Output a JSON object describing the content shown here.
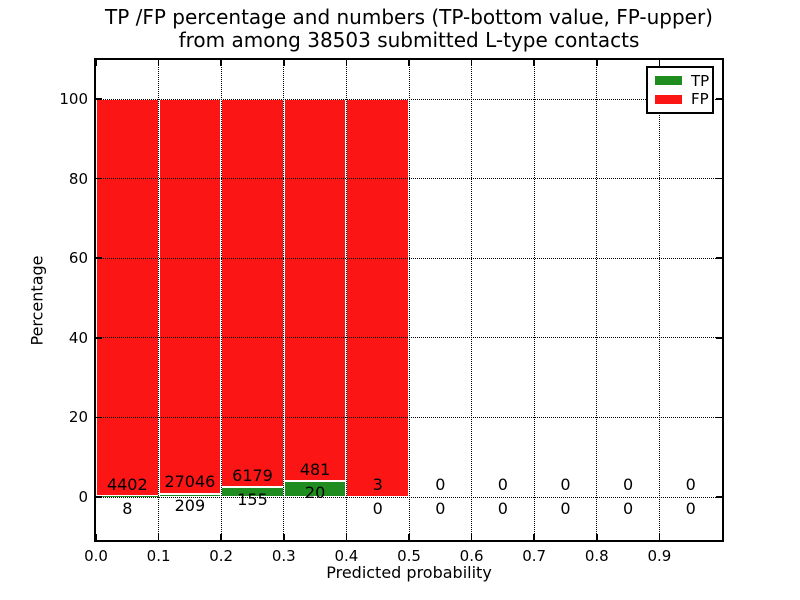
{
  "title": {
    "line1": "TP /FP percentage and numbers (TP-bottom value, FP-upper)",
    "line2": "from among 38503 submitted L-type contacts"
  },
  "chart_data": {
    "type": "bar",
    "stacked": true,
    "title": "TP /FP percentage and numbers (TP-bottom value, FP-upper)\nfrom among 38503 submitted L-type contacts",
    "xlabel": "Predicted probability",
    "ylabel": "Percentage",
    "xlim": [
      0.0,
      1.0
    ],
    "ylim": [
      -10.8,
      109.8
    ],
    "xtick_labels": [
      "0.0",
      "0.1",
      "0.2",
      "0.3",
      "0.4",
      "0.5",
      "0.6",
      "0.7",
      "0.8",
      "0.9"
    ],
    "xtick_values": [
      0.0,
      0.1,
      0.2,
      0.3,
      0.4,
      0.5,
      0.6,
      0.7,
      0.8,
      0.9
    ],
    "ytick_values": [
      0,
      20,
      40,
      60,
      80,
      100
    ],
    "grid": "dotted-black-above-bars",
    "total_contacts": 38503,
    "legend": {
      "position": "upper right",
      "entries": [
        {
          "label": "TP",
          "color": "#1f8c1f"
        },
        {
          "label": "FP",
          "color": "#fb1515"
        }
      ]
    },
    "series": [
      {
        "name": "TP",
        "color": "#1f8c1f",
        "values": [
          8,
          209,
          155,
          20,
          0,
          0,
          0,
          0,
          0,
          0
        ]
      },
      {
        "name": "FP",
        "color": "#fb1515",
        "values": [
          4402,
          27046,
          6179,
          481,
          3,
          0,
          0,
          0,
          0,
          0
        ]
      }
    ],
    "bins": [
      {
        "range": [
          0.0,
          0.1
        ],
        "tp": 8,
        "fp": 4402
      },
      {
        "range": [
          0.1,
          0.2
        ],
        "tp": 209,
        "fp": 27046
      },
      {
        "range": [
          0.2,
          0.3
        ],
        "tp": 155,
        "fp": 6179
      },
      {
        "range": [
          0.3,
          0.4
        ],
        "tp": 20,
        "fp": 481
      },
      {
        "range": [
          0.4,
          0.5
        ],
        "tp": 0,
        "fp": 3
      },
      {
        "range": [
          0.5,
          0.6
        ],
        "tp": 0,
        "fp": 0
      },
      {
        "range": [
          0.6,
          0.7
        ],
        "tp": 0,
        "fp": 0
      },
      {
        "range": [
          0.7,
          0.8
        ],
        "tp": 0,
        "fp": 0
      },
      {
        "range": [
          0.8,
          0.9
        ],
        "tp": 0,
        "fp": 0
      },
      {
        "range": [
          0.9,
          1.0
        ],
        "tp": 0,
        "fp": 0
      }
    ],
    "colors": {
      "tp": "#1f8c1f",
      "fp": "#fb1515",
      "frame": "#000000",
      "background": "#ffffff",
      "bar_edge": "#ffffff",
      "text": "#000000"
    }
  }
}
